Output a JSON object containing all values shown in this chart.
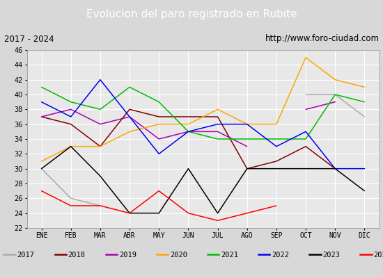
{
  "title": "Evolucion del paro registrado en Rubite",
  "subtitle_left": "2017 - 2024",
  "subtitle_right": "http://www.foro-ciudad.com",
  "months": [
    "ENE",
    "FEB",
    "MAR",
    "ABR",
    "MAY",
    "JUN",
    "JUL",
    "AGO",
    "SEP",
    "OCT",
    "NOV",
    "DIC"
  ],
  "ylim": [
    22,
    46
  ],
  "series": {
    "2017": {
      "color": "#aaaaaa",
      "data": [
        30,
        26,
        25,
        null,
        null,
        null,
        null,
        null,
        null,
        40,
        40,
        37
      ]
    },
    "2018": {
      "color": "#800000",
      "data": [
        37,
        36,
        33,
        38,
        37,
        37,
        37,
        30,
        31,
        33,
        30,
        null
      ]
    },
    "2019": {
      "color": "#aa00aa",
      "data": [
        37,
        38,
        36,
        37,
        34,
        35,
        35,
        33,
        null,
        38,
        39,
        null
      ]
    },
    "2020": {
      "color": "#ffa500",
      "data": [
        31,
        33,
        33,
        35,
        36,
        36,
        38,
        36,
        36,
        45,
        42,
        41
      ]
    },
    "2021": {
      "color": "#00bb00",
      "data": [
        41,
        39,
        38,
        41,
        39,
        35,
        34,
        34,
        34,
        34,
        40,
        39
      ]
    },
    "2022": {
      "color": "#0000ee",
      "data": [
        39,
        37,
        42,
        37,
        32,
        35,
        36,
        36,
        33,
        35,
        30,
        30
      ]
    },
    "2023": {
      "color": "#000000",
      "data": [
        30,
        33,
        29,
        24,
        24,
        30,
        24,
        30,
        30,
        30,
        30,
        27
      ]
    },
    "2024": {
      "color": "#ff0000",
      "data": [
        27,
        25,
        25,
        24,
        27,
        24,
        23,
        24,
        25,
        null,
        null,
        null
      ]
    }
  },
  "bg_color": "#d8d8d8",
  "plot_bg_color": "#e8e8e8",
  "title_bg_color": "#4f81bd",
  "title_text_color": "#ffffff",
  "grid_color": "#ffffff",
  "subtitle_bg_color": "#cccccc",
  "legend_bg_color": "#e0e0e0"
}
